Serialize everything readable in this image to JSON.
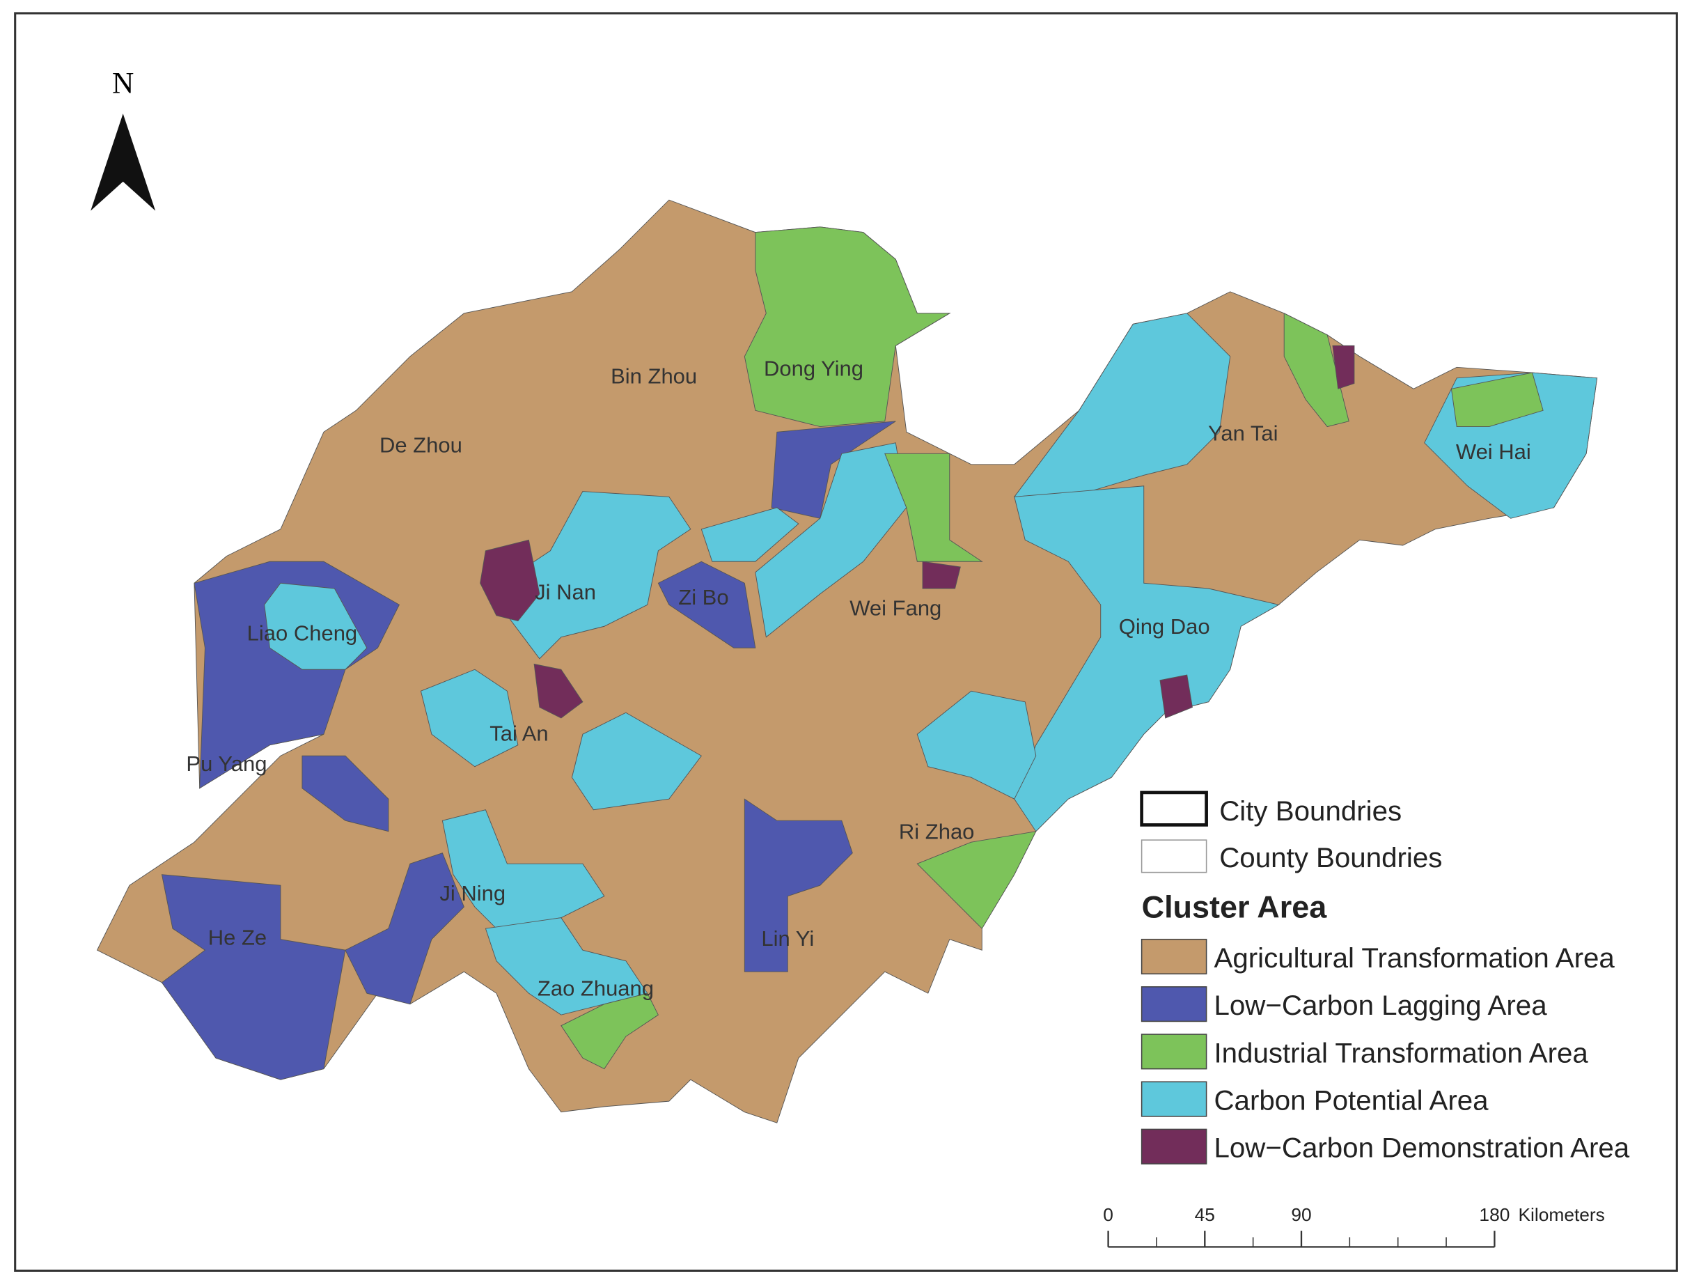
{
  "north_arrow": "N",
  "cities": [
    "Bin Zhou",
    "Dong Ying",
    "De Zhou",
    "Yan Tai",
    "Wei Hai",
    "Ji Nan",
    "Zi Bo",
    "Liao Cheng",
    "Wei Fang",
    "Qing Dao",
    "Tai An",
    "Pu Yang",
    "Ri Zhao",
    "Ji Ning",
    "He Ze",
    "Lin Yi",
    "Zao Zhuang"
  ],
  "legend": {
    "boundaries": [
      "City Boundries",
      "County Boundries"
    ],
    "title": "Cluster Area",
    "items": [
      {
        "label": "Agricultural Transformation Area",
        "color": "#c49a6c"
      },
      {
        "label": "Low−Carbon Lagging Area",
        "color": "#4f58ae"
      },
      {
        "label": "Industrial Transformation Area",
        "color": "#7dc35a"
      },
      {
        "label": "Carbon Potential Area",
        "color": "#5ec8dc"
      },
      {
        "label": "Low−Carbon Demonstration Area",
        "color": "#722d5a"
      }
    ]
  },
  "scale_bar": {
    "ticks": [
      0,
      45,
      90,
      180
    ],
    "unit": "Kilometers"
  }
}
